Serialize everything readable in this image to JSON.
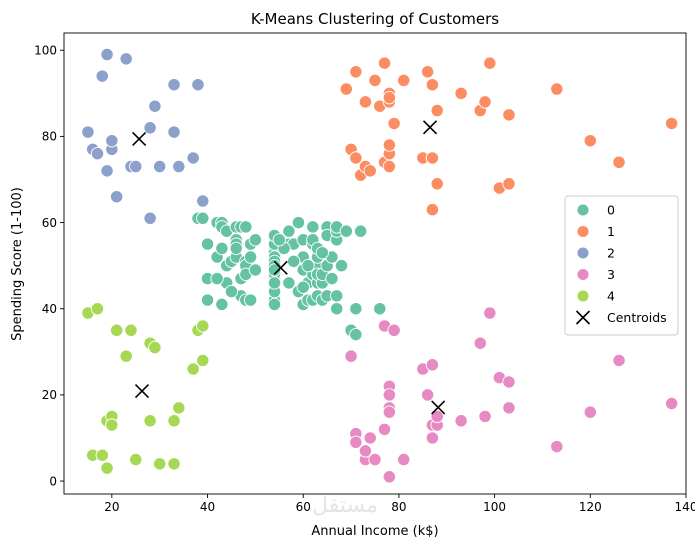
{
  "chart_data": {
    "type": "scatter",
    "title": "K-Means Clustering of Customers",
    "xlabel": "Annual Income (k$)",
    "ylabel": "Spending Score (1-100)",
    "xlim": [
      10,
      140
    ],
    "ylim": [
      -3,
      104
    ],
    "xticks": [
      20,
      40,
      60,
      80,
      100,
      120,
      140
    ],
    "yticks": [
      0,
      20,
      40,
      60,
      80,
      100
    ],
    "grid": false,
    "legend_position": "center-right",
    "legend_entries": [
      "0",
      "1",
      "2",
      "3",
      "4",
      "Centroids"
    ],
    "watermark_text": "مستقل",
    "series": [
      {
        "name": "0",
        "color": "#66c2a5",
        "points": [
          [
            38,
            61
          ],
          [
            39,
            61
          ],
          [
            40,
            55
          ],
          [
            40,
            47
          ],
          [
            40,
            42
          ],
          [
            42,
            52
          ],
          [
            42,
            60
          ],
          [
            43,
            54
          ],
          [
            43,
            60
          ],
          [
            43,
            59
          ],
          [
            43,
            41
          ],
          [
            44,
            46
          ],
          [
            44,
            50
          ],
          [
            44,
            58
          ],
          [
            45,
            51
          ],
          [
            46,
            56
          ],
          [
            46,
            55
          ],
          [
            46,
            52
          ],
          [
            46,
            59
          ],
          [
            46,
            54
          ],
          [
            47,
            59
          ],
          [
            47,
            47
          ],
          [
            47,
            43
          ],
          [
            48,
            51
          ],
          [
            48,
            50
          ],
          [
            48,
            48
          ],
          [
            48,
            42
          ],
          [
            48,
            59
          ],
          [
            49,
            55
          ],
          [
            49,
            52
          ],
          [
            50,
            49
          ],
          [
            50,
            56
          ],
          [
            54,
            47
          ],
          [
            54,
            54
          ],
          [
            54,
            53
          ],
          [
            54,
            48
          ],
          [
            54,
            52
          ],
          [
            54,
            42
          ],
          [
            54,
            51
          ],
          [
            54,
            55
          ],
          [
            54,
            41
          ],
          [
            54,
            44
          ],
          [
            54,
            57
          ],
          [
            54,
            46
          ],
          [
            54,
            50
          ],
          [
            54,
            49
          ],
          [
            57,
            58
          ],
          [
            57,
            55
          ],
          [
            58,
            55
          ],
          [
            59,
            60
          ],
          [
            60,
            41
          ],
          [
            60,
            56
          ],
          [
            60,
            52
          ],
          [
            60,
            49
          ],
          [
            61,
            42
          ],
          [
            61,
            46
          ],
          [
            62,
            48
          ],
          [
            62,
            59
          ],
          [
            62,
            55
          ],
          [
            62,
            56
          ],
          [
            62,
            42
          ],
          [
            63,
            50
          ],
          [
            63,
            46
          ],
          [
            63,
            43
          ],
          [
            63,
            48
          ],
          [
            63,
            52
          ],
          [
            63,
            54
          ],
          [
            64,
            42
          ],
          [
            64,
            46
          ],
          [
            64,
            48
          ],
          [
            65,
            50
          ],
          [
            65,
            43
          ],
          [
            65,
            59
          ],
          [
            65,
            57
          ],
          [
            67,
            56
          ],
          [
            67,
            40
          ],
          [
            67,
            58
          ],
          [
            67,
            43
          ],
          [
            67,
            59
          ],
          [
            69,
            58
          ],
          [
            70,
            35
          ],
          [
            71,
            34
          ],
          [
            71,
            40
          ],
          [
            76,
            40
          ],
          [
            72,
            58
          ],
          [
            66,
            52
          ],
          [
            66,
            47
          ],
          [
            57,
            46
          ],
          [
            58,
            51
          ],
          [
            59,
            44
          ],
          [
            61,
            50
          ],
          [
            56,
            54
          ],
          [
            55,
            56
          ],
          [
            60,
            45
          ],
          [
            64,
            53
          ],
          [
            68,
            50
          ],
          [
            42,
            47
          ],
          [
            45,
            44
          ],
          [
            49,
            42
          ]
        ]
      },
      {
        "name": "1",
        "color": "#fc8d62",
        "points": [
          [
            69,
            91
          ],
          [
            70,
            77
          ],
          [
            71,
            95
          ],
          [
            71,
            75
          ],
          [
            72,
            71
          ],
          [
            73,
            88
          ],
          [
            73,
            73
          ],
          [
            74,
            72
          ],
          [
            75,
            93
          ],
          [
            76,
            87
          ],
          [
            77,
            97
          ],
          [
            77,
            74
          ],
          [
            78,
            90
          ],
          [
            78,
            88
          ],
          [
            78,
            76
          ],
          [
            78,
            89
          ],
          [
            78,
            78
          ],
          [
            78,
            73
          ],
          [
            79,
            83
          ],
          [
            81,
            93
          ],
          [
            85,
            75
          ],
          [
            86,
            95
          ],
          [
            87,
            63
          ],
          [
            87,
            75
          ],
          [
            87,
            92
          ],
          [
            88,
            86
          ],
          [
            88,
            69
          ],
          [
            93,
            90
          ],
          [
            97,
            86
          ],
          [
            98,
            88
          ],
          [
            99,
            97
          ],
          [
            101,
            68
          ],
          [
            103,
            85
          ],
          [
            103,
            69
          ],
          [
            113,
            91
          ],
          [
            120,
            79
          ],
          [
            126,
            74
          ],
          [
            137,
            83
          ]
        ]
      },
      {
        "name": "2",
        "color": "#8da0cb",
        "points": [
          [
            15,
            81
          ],
          [
            16,
            77
          ],
          [
            17,
            76
          ],
          [
            18,
            94
          ],
          [
            19,
            72
          ],
          [
            19,
            99
          ],
          [
            20,
            77
          ],
          [
            20,
            79
          ],
          [
            21,
            66
          ],
          [
            23,
            98
          ],
          [
            24,
            73
          ],
          [
            25,
            73
          ],
          [
            28,
            82
          ],
          [
            28,
            61
          ],
          [
            29,
            87
          ],
          [
            30,
            73
          ],
          [
            33,
            92
          ],
          [
            33,
            81
          ],
          [
            34,
            73
          ],
          [
            37,
            75
          ],
          [
            38,
            92
          ],
          [
            39,
            65
          ]
        ]
      },
      {
        "name": "3",
        "color": "#e78ac3",
        "points": [
          [
            70,
            29
          ],
          [
            71,
            11
          ],
          [
            71,
            9
          ],
          [
            73,
            5
          ],
          [
            73,
            7
          ],
          [
            74,
            10
          ],
          [
            75,
            5
          ],
          [
            77,
            12
          ],
          [
            77,
            36
          ],
          [
            78,
            22
          ],
          [
            78,
            20
          ],
          [
            78,
            17
          ],
          [
            78,
            16
          ],
          [
            78,
            1
          ],
          [
            79,
            35
          ],
          [
            81,
            5
          ],
          [
            85,
            26
          ],
          [
            86,
            20
          ],
          [
            87,
            27
          ],
          [
            87,
            13
          ],
          [
            87,
            10
          ],
          [
            88,
            13
          ],
          [
            88,
            15
          ],
          [
            93,
            14
          ],
          [
            97,
            32
          ],
          [
            98,
            15
          ],
          [
            99,
            39
          ],
          [
            101,
            24
          ],
          [
            103,
            23
          ],
          [
            103,
            17
          ],
          [
            113,
            8
          ],
          [
            120,
            16
          ],
          [
            126,
            28
          ],
          [
            137,
            18
          ]
        ]
      },
      {
        "name": "4",
        "color": "#a6d854",
        "points": [
          [
            15,
            39
          ],
          [
            16,
            6
          ],
          [
            17,
            40
          ],
          [
            18,
            6
          ],
          [
            19,
            3
          ],
          [
            19,
            14
          ],
          [
            20,
            15
          ],
          [
            20,
            13
          ],
          [
            21,
            35
          ],
          [
            23,
            29
          ],
          [
            24,
            35
          ],
          [
            25,
            5
          ],
          [
            28,
            14
          ],
          [
            28,
            32
          ],
          [
            29,
            31
          ],
          [
            30,
            4
          ],
          [
            33,
            4
          ],
          [
            33,
            14
          ],
          [
            34,
            17
          ],
          [
            37,
            26
          ],
          [
            38,
            35
          ],
          [
            39,
            36
          ],
          [
            39,
            28
          ]
        ]
      },
      {
        "name": "Centroids",
        "color": "#000000",
        "marker": "x",
        "points": [
          [
            55.3,
            49.5
          ],
          [
            86.5,
            82.1
          ],
          [
            25.7,
            79.4
          ],
          [
            88.2,
            17.1
          ],
          [
            26.3,
            20.9
          ]
        ]
      }
    ]
  }
}
